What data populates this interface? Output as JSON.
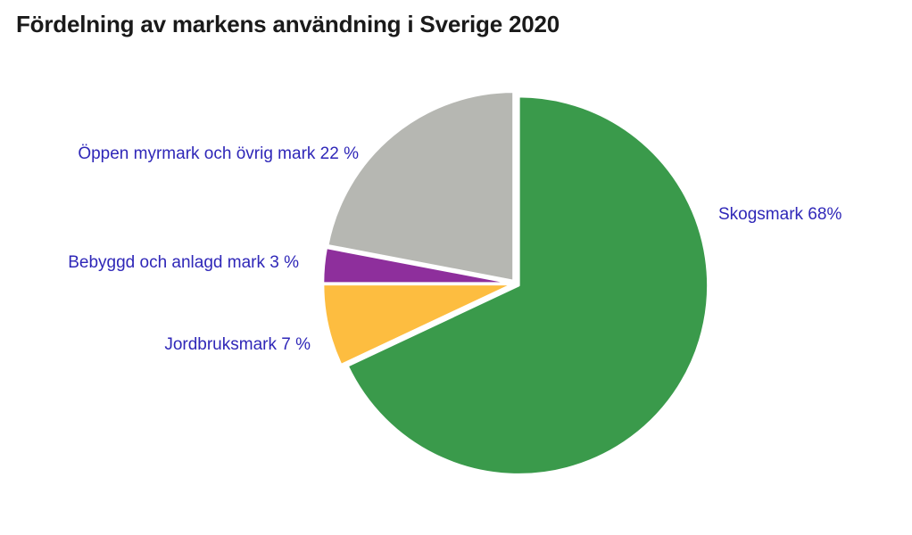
{
  "chart_data": {
    "type": "pie",
    "title": "Fördelning av markens användning i Sverige 2020",
    "slices": [
      {
        "label": "Skogsmark 68%",
        "value": 68,
        "color": "#3a9a4b"
      },
      {
        "label": "Jordbruksmark 7 %",
        "value": 7,
        "color": "#fdbd40"
      },
      {
        "label": "Bebyggd och anlagd mark 3 %",
        "value": 3,
        "color": "#8e2f9c"
      },
      {
        "label": "Öppen myrmark och övrig mark 22 %",
        "value": 22,
        "color": "#b6b7b2"
      }
    ],
    "label_color": "#2f27b8",
    "legend": "none"
  }
}
